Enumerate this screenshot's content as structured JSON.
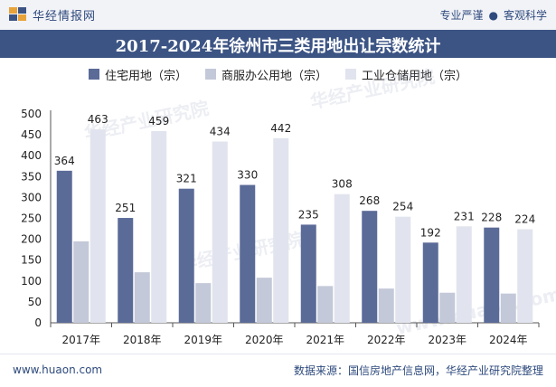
{
  "header": {
    "brand": "华经情报网",
    "slogan_left": "专业严谨",
    "slogan_right": "客观科学",
    "dot": "●"
  },
  "footer": {
    "url": "www.huaon.com",
    "source": "数据来源：国信房地产信息网，华经产业研究院整理"
  },
  "watermarks": [
    "华经产业研究院",
    "华经产业研究院",
    "华经产业研究院",
    "www.huaon.com"
  ],
  "colors": {
    "series1": "#5b6b98",
    "series2": "#c4c9d9",
    "series3": "#e1e4ee",
    "title_bg": "#3c5484",
    "brand": "#2e4a7d"
  },
  "chart_data": {
    "type": "bar",
    "title": "2017-2024年徐州市三类用地出让宗数统计",
    "categories": [
      "2017年",
      "2018年",
      "2019年",
      "2020年",
      "2021年",
      "2022年",
      "2023年",
      "2024年"
    ],
    "series": [
      {
        "name": "住宅用地（宗）",
        "values": [
          364,
          251,
          321,
          330,
          235,
          268,
          192,
          228
        ],
        "labeled": true
      },
      {
        "name": "商服办公用地（宗）",
        "values": [
          195,
          121,
          95,
          108,
          88,
          82,
          72,
          70
        ],
        "labeled": false
      },
      {
        "name": "工业仓储用地（宗）",
        "values": [
          463,
          459,
          434,
          442,
          308,
          254,
          231,
          224
        ],
        "labeled": true
      }
    ],
    "ylim": [
      0,
      500
    ],
    "yticks": [
      0,
      50,
      100,
      150,
      200,
      250,
      300,
      350,
      400,
      450,
      500
    ],
    "xlabel": "",
    "ylabel": "",
    "grid": false,
    "legend_position": "top"
  }
}
